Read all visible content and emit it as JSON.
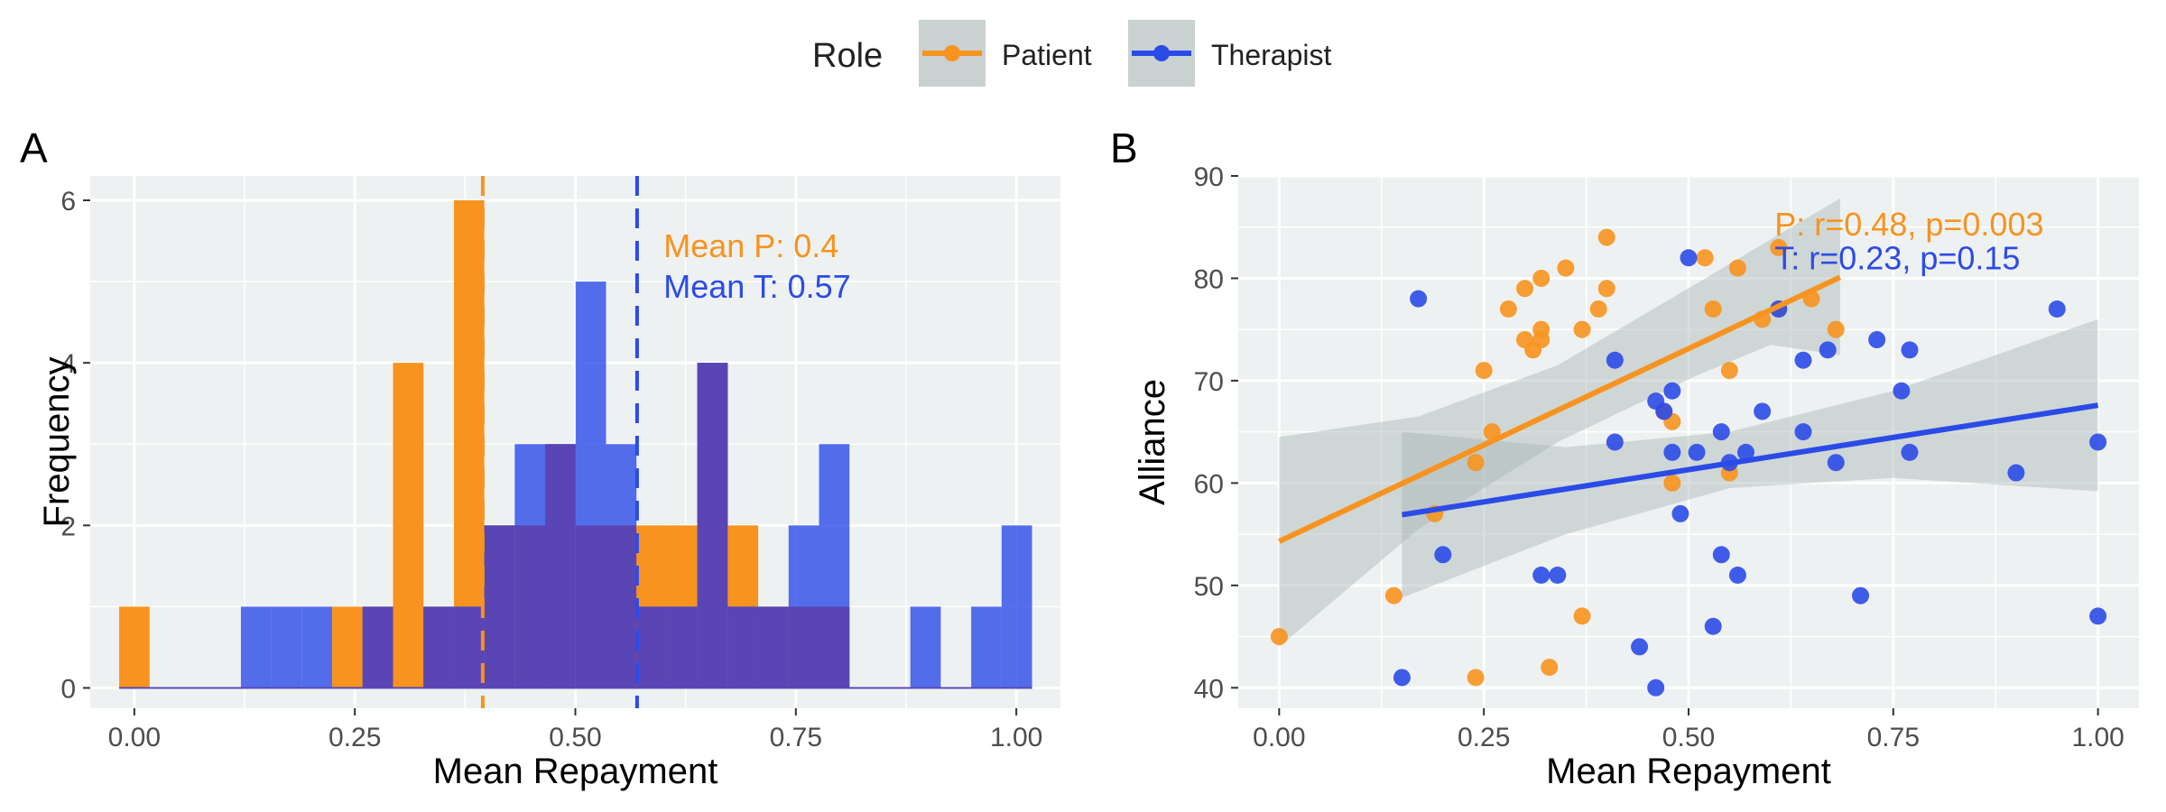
{
  "colors": {
    "patient": "#F7931E",
    "therapist": "#2B4BE8",
    "overlap": "#5A45B5",
    "panel_bg": "#EEF1F1",
    "grid": "#FFFFFF",
    "ribbon": "#A9B5B5",
    "text": "#222222",
    "tick_label": "#4D4D4D"
  },
  "legend": {
    "title": "Role",
    "items": [
      {
        "label": "Patient",
        "color": "#F7931E"
      },
      {
        "label": "Therapist",
        "color": "#2B4BE8"
      }
    ]
  },
  "chart_data": [
    {
      "panel_label": "A",
      "type": "bar",
      "subtype": "histogram",
      "xlabel": "Mean Repayment",
      "ylabel": "Frequency",
      "xlim": [
        -0.05,
        1.05
      ],
      "ylim": [
        -0.25,
        6.3
      ],
      "xticks": [
        0.0,
        0.25,
        0.5,
        0.75,
        1.0
      ],
      "xtick_labels": [
        "0.00",
        "0.25",
        "0.50",
        "0.75",
        "1.00"
      ],
      "yticks": [
        0,
        2,
        4,
        6
      ],
      "ytick_labels": [
        "0",
        "2",
        "4",
        "6"
      ],
      "bin_width": 0.0345,
      "bin_start": -0.0172,
      "series": [
        {
          "name": "Patient",
          "color_key": "patient",
          "counts": [
            1,
            0,
            0,
            0,
            0,
            0,
            0,
            1,
            1,
            4,
            1,
            6,
            2,
            2,
            3,
            2,
            2,
            2,
            2,
            4,
            2,
            1,
            1,
            1,
            0,
            0,
            0,
            0,
            0,
            0
          ]
        },
        {
          "name": "Therapist",
          "color_key": "therapist",
          "counts": [
            0,
            0,
            0,
            0,
            1,
            1,
            1,
            0,
            1,
            0,
            1,
            1,
            2,
            3,
            3,
            5,
            3,
            1,
            1,
            4,
            1,
            1,
            2,
            3,
            0,
            0,
            1,
            0,
            1,
            2
          ]
        }
      ],
      "mean_lines": [
        {
          "series": "Patient",
          "x": 0.395,
          "color_key": "patient"
        },
        {
          "series": "Therapist",
          "x": 0.57,
          "color_key": "therapist"
        }
      ],
      "annotations": [
        {
          "text": "Mean P: 0.4",
          "color_key": "patient",
          "x": 0.6,
          "y": 5.3
        },
        {
          "text": "Mean T: 0.57",
          "color_key": "therapist",
          "x": 0.6,
          "y": 4.8
        }
      ]
    },
    {
      "panel_label": "B",
      "type": "scatter",
      "xlabel": "Mean Repayment",
      "ylabel": "Alliance",
      "xlim": [
        -0.05,
        1.05
      ],
      "ylim": [
        38,
        90
      ],
      "xticks": [
        0.0,
        0.25,
        0.5,
        0.75,
        1.0
      ],
      "xtick_labels": [
        "0.00",
        "0.25",
        "0.50",
        "0.75",
        "1.00"
      ],
      "yticks": [
        40,
        50,
        60,
        70,
        80,
        90
      ],
      "ytick_labels": [
        "40",
        "50",
        "60",
        "70",
        "80",
        "90"
      ],
      "series": [
        {
          "name": "Patient",
          "color_key": "patient",
          "points": [
            [
              0.0,
              45
            ],
            [
              0.14,
              49
            ],
            [
              0.19,
              57
            ],
            [
              0.24,
              41
            ],
            [
              0.24,
              62
            ],
            [
              0.25,
              71
            ],
            [
              0.26,
              65
            ],
            [
              0.28,
              77
            ],
            [
              0.3,
              79
            ],
            [
              0.3,
              74
            ],
            [
              0.31,
              73
            ],
            [
              0.32,
              80
            ],
            [
              0.32,
              74
            ],
            [
              0.32,
              75
            ],
            [
              0.33,
              42
            ],
            [
              0.35,
              81
            ],
            [
              0.37,
              47
            ],
            [
              0.37,
              75
            ],
            [
              0.39,
              77
            ],
            [
              0.4,
              79
            ],
            [
              0.4,
              84
            ],
            [
              0.47,
              67
            ],
            [
              0.48,
              60
            ],
            [
              0.48,
              66
            ],
            [
              0.52,
              82
            ],
            [
              0.53,
              77
            ],
            [
              0.55,
              71
            ],
            [
              0.55,
              61
            ],
            [
              0.56,
              81
            ],
            [
              0.59,
              76
            ],
            [
              0.61,
              83
            ],
            [
              0.61,
              77
            ],
            [
              0.65,
              78
            ],
            [
              0.68,
              75
            ]
          ],
          "fit": {
            "x": [
              0.0,
              0.685
            ],
            "y": [
              54.3,
              80.1
            ]
          },
          "ribbon_upper": [
            [
              0.0,
              64.5
            ],
            [
              0.17,
              66.5
            ],
            [
              0.34,
              71.5
            ],
            [
              0.51,
              79.5
            ],
            [
              0.6,
              83.8
            ],
            [
              0.685,
              87.8
            ]
          ],
          "ribbon_lower": [
            [
              0.0,
              44.0
            ],
            [
              0.17,
              55.5
            ],
            [
              0.34,
              64.0
            ],
            [
              0.51,
              70.5
            ],
            [
              0.6,
              73.5
            ],
            [
              0.685,
              72.5
            ]
          ]
        },
        {
          "name": "Therapist",
          "color_key": "therapist",
          "points": [
            [
              0.15,
              41
            ],
            [
              0.17,
              78
            ],
            [
              0.2,
              53
            ],
            [
              0.32,
              51
            ],
            [
              0.34,
              51
            ],
            [
              0.41,
              64
            ],
            [
              0.41,
              72
            ],
            [
              0.44,
              44
            ],
            [
              0.46,
              40
            ],
            [
              0.46,
              68
            ],
            [
              0.47,
              67
            ],
            [
              0.48,
              69
            ],
            [
              0.48,
              63
            ],
            [
              0.49,
              57
            ],
            [
              0.5,
              82
            ],
            [
              0.51,
              63
            ],
            [
              0.53,
              46
            ],
            [
              0.54,
              53
            ],
            [
              0.54,
              65
            ],
            [
              0.55,
              62
            ],
            [
              0.56,
              51
            ],
            [
              0.57,
              63
            ],
            [
              0.59,
              67
            ],
            [
              0.61,
              77
            ],
            [
              0.64,
              72
            ],
            [
              0.64,
              65
            ],
            [
              0.67,
              73
            ],
            [
              0.68,
              62
            ],
            [
              0.71,
              49
            ],
            [
              0.73,
              74
            ],
            [
              0.76,
              69
            ],
            [
              0.77,
              73
            ],
            [
              0.77,
              63
            ],
            [
              0.9,
              61
            ],
            [
              0.95,
              77
            ],
            [
              1.0,
              47
            ],
            [
              1.0,
              64
            ]
          ],
          "fit": {
            "x": [
              0.15,
              1.0
            ],
            "y": [
              56.9,
              67.6
            ]
          },
          "ribbon_upper": [
            [
              0.15,
              65.0
            ],
            [
              0.35,
              63.5
            ],
            [
              0.55,
              65.0
            ],
            [
              0.75,
              69.0
            ],
            [
              1.0,
              76.0
            ]
          ],
          "ribbon_lower": [
            [
              0.15,
              48.8
            ],
            [
              0.35,
              55.0
            ],
            [
              0.55,
              59.5
            ],
            [
              0.75,
              60.5
            ],
            [
              1.0,
              59.2
            ]
          ]
        }
      ],
      "annotations": [
        {
          "text": "P: r=0.48, p=0.003",
          "color_key": "patient",
          "x": 0.605,
          "y": 84.2
        },
        {
          "text": "T: r=0.23, p=0.15",
          "color_key": "therapist",
          "x": 0.605,
          "y": 80.9
        }
      ]
    }
  ]
}
